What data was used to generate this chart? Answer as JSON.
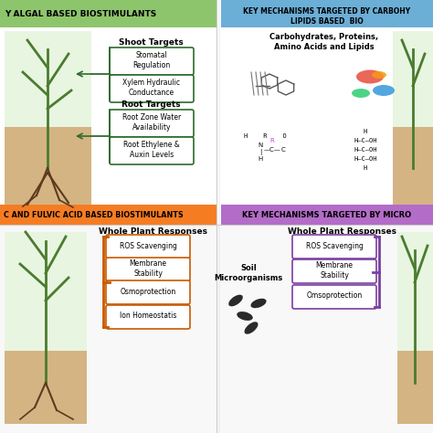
{
  "fig_width": 4.74,
  "fig_height": 4.74,
  "dpi": 100,
  "bg_color": "#ffffff",
  "header1_color": "#8dc56c",
  "header1_text": "Y ALGAL BASED BIOSTIMULANTS",
  "header2_color": "#6baed6",
  "header2_text_line1": "KEY MECHANISMS TARGETED BY CARBOHY",
  "header2_text_line2": "LIPIDS BASED  BIO",
  "header3_color": "#f57c22",
  "header3_text": "C AND FULVIC ACID BASED BIOSTIMULANTS",
  "header4_color": "#b36cc8",
  "header4_text": "KEY MECHANISMS TARGETED BY MICRO",
  "shoot_label": "Shoot Targets",
  "root_label": "Root Targets",
  "shoot_boxes": [
    "Stomatal\nRegulation",
    "Xylem Hydraulic\nConductance"
  ],
  "root_boxes": [
    "Root Zone Water\nAvailability",
    "Root Ethylene &\nAuxin Levels"
  ],
  "shoot_box_color": "#ffffff",
  "shoot_box_edge": "#2e6b2e",
  "carb_label": "Carbohydrates, Proteins,\nAmino Acids and Lipids",
  "whole_plant_label1": "Whole Plant Responses",
  "whole_plant_label2": "Whole Plant Responses",
  "soil_label": "Soil\nMicroorganisms",
  "left_boxes": [
    "ROS Scavenging",
    "Membrane\nStability",
    "Osmoprotection",
    "Ion Homeostatis"
  ],
  "left_box_color": "#ffffff",
  "left_box_edge": "#c85a00",
  "right_boxes": [
    "ROS Scavenging",
    "Membrane\nStability",
    "Omsoprotection"
  ],
  "right_box_color": "#ffffff",
  "right_box_edge": "#7b3fa0",
  "soil_color": "#d4b483",
  "plant_bg_color": "#e8f5e0"
}
